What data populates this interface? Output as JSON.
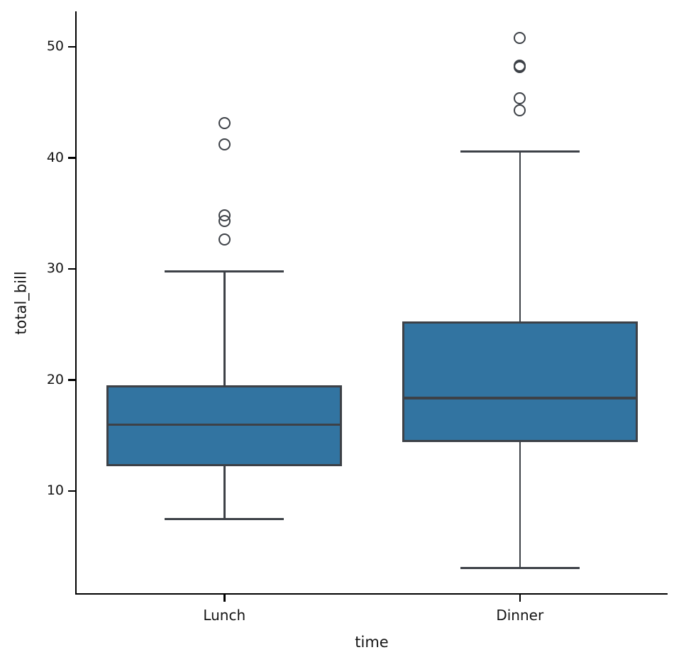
{
  "chart_data": {
    "type": "box",
    "title": "",
    "xlabel": "time",
    "ylabel": "total_bill",
    "categories": [
      "Lunch",
      "Dinner"
    ],
    "yticks": [
      10,
      20,
      30,
      40,
      50
    ],
    "ylim": [
      0.68,
      53.2
    ],
    "grid": false,
    "legend": "none",
    "series": [
      {
        "category": "Lunch",
        "whisker_low": 7.51,
        "q1": 12.24,
        "median": 15.97,
        "q3": 19.53,
        "whisker_high": 29.8,
        "outliers": [
          32.68,
          34.3,
          34.83,
          41.19,
          43.11
        ]
      },
      {
        "category": "Dinner",
        "whisker_low": 3.07,
        "q1": 14.44,
        "median": 18.39,
        "q3": 25.28,
        "whisker_high": 40.55,
        "outliers": [
          44.3,
          45.35,
          48.17,
          48.27,
          48.33,
          50.81
        ]
      }
    ],
    "colors": {
      "box_fill": "#3274a1",
      "line": "#3d4147",
      "spine": "#000000",
      "text": "#141414"
    }
  }
}
